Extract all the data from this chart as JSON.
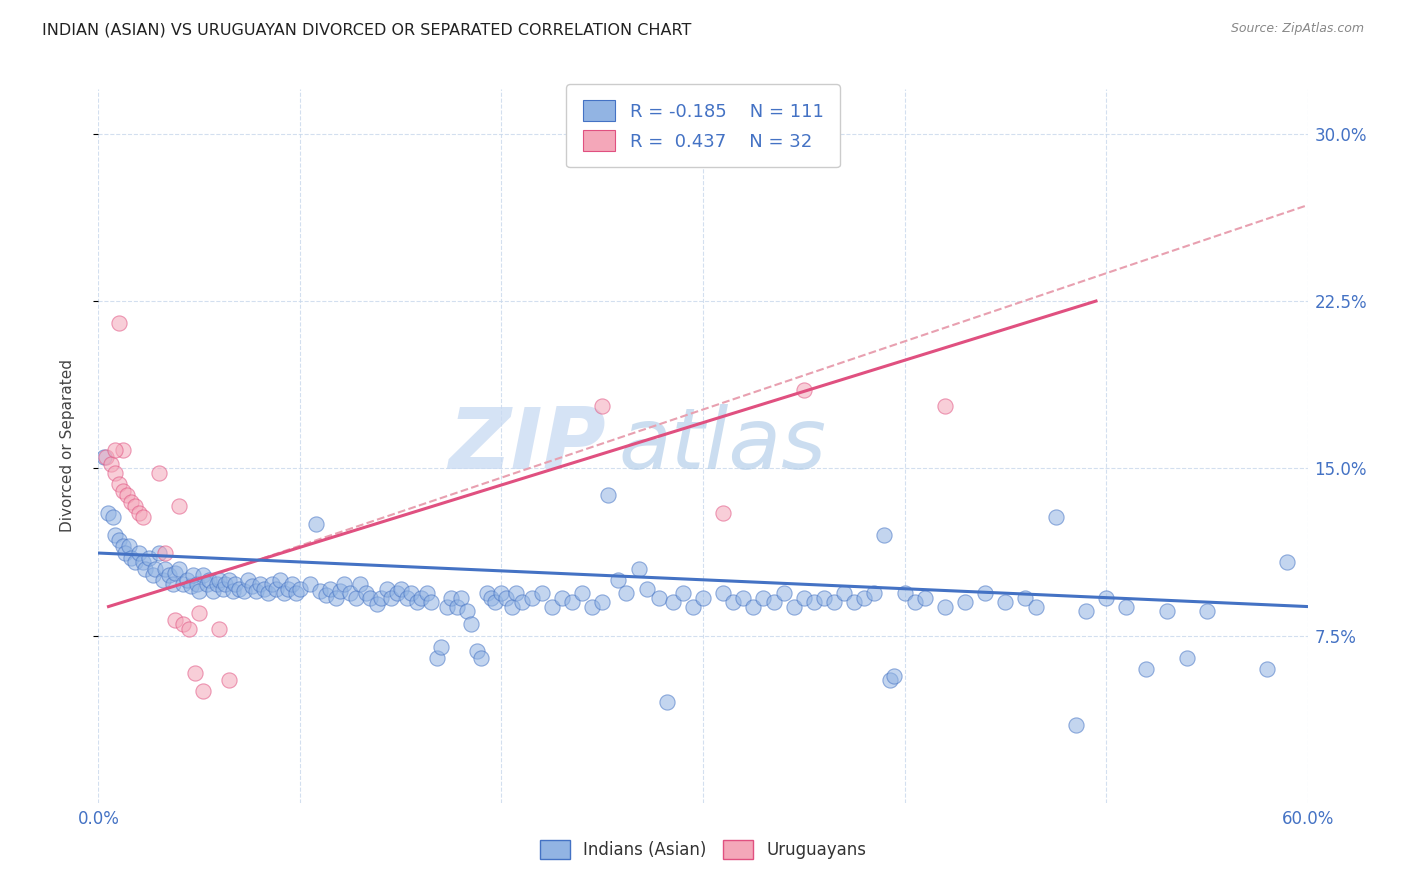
{
  "title": "INDIAN (ASIAN) VS URUGUAYAN DIVORCED OR SEPARATED CORRELATION CHART",
  "source": "Source: ZipAtlas.com",
  "ylabel": "Divorced or Separated",
  "legend_labels": [
    "Indians (Asian)",
    "Uruguayans"
  ],
  "legend_r_n": [
    {
      "r": "-0.185",
      "n": "111"
    },
    {
      "r": "0.437",
      "n": "32"
    }
  ],
  "xlim": [
    0.0,
    0.6
  ],
  "ylim": [
    0.0,
    0.32
  ],
  "xticks": [
    0.0,
    0.1,
    0.2,
    0.3,
    0.4,
    0.5,
    0.6
  ],
  "yticks": [
    0.075,
    0.15,
    0.225,
    0.3
  ],
  "ytick_labels": [
    "7.5%",
    "15.0%",
    "22.5%",
    "30.0%"
  ],
  "color_blue": "#92b4e3",
  "color_pink": "#f4a7b9",
  "line_blue": "#4472c4",
  "line_pink": "#e05080",
  "watermark_zip": "ZIP",
  "watermark_atlas": "atlas",
  "blue_scatter": [
    [
      0.003,
      0.155
    ],
    [
      0.005,
      0.13
    ],
    [
      0.007,
      0.128
    ],
    [
      0.008,
      0.12
    ],
    [
      0.01,
      0.118
    ],
    [
      0.012,
      0.115
    ],
    [
      0.013,
      0.112
    ],
    [
      0.015,
      0.115
    ],
    [
      0.016,
      0.11
    ],
    [
      0.018,
      0.108
    ],
    [
      0.02,
      0.112
    ],
    [
      0.022,
      0.108
    ],
    [
      0.023,
      0.105
    ],
    [
      0.025,
      0.11
    ],
    [
      0.027,
      0.102
    ],
    [
      0.028,
      0.105
    ],
    [
      0.03,
      0.112
    ],
    [
      0.032,
      0.1
    ],
    [
      0.033,
      0.105
    ],
    [
      0.035,
      0.102
    ],
    [
      0.037,
      0.098
    ],
    [
      0.038,
      0.103
    ],
    [
      0.04,
      0.105
    ],
    [
      0.042,
      0.098
    ],
    [
      0.044,
      0.1
    ],
    [
      0.046,
      0.097
    ],
    [
      0.047,
      0.102
    ],
    [
      0.049,
      0.098
    ],
    [
      0.05,
      0.095
    ],
    [
      0.052,
      0.102
    ],
    [
      0.054,
      0.098
    ],
    [
      0.055,
      0.1
    ],
    [
      0.057,
      0.095
    ],
    [
      0.059,
      0.098
    ],
    [
      0.06,
      0.1
    ],
    [
      0.062,
      0.096
    ],
    [
      0.063,
      0.098
    ],
    [
      0.065,
      0.1
    ],
    [
      0.067,
      0.095
    ],
    [
      0.068,
      0.098
    ],
    [
      0.07,
      0.096
    ],
    [
      0.072,
      0.095
    ],
    [
      0.074,
      0.1
    ],
    [
      0.076,
      0.097
    ],
    [
      0.078,
      0.095
    ],
    [
      0.08,
      0.098
    ],
    [
      0.082,
      0.096
    ],
    [
      0.084,
      0.094
    ],
    [
      0.086,
      0.098
    ],
    [
      0.088,
      0.096
    ],
    [
      0.09,
      0.1
    ],
    [
      0.092,
      0.094
    ],
    [
      0.094,
      0.096
    ],
    [
      0.096,
      0.098
    ],
    [
      0.098,
      0.094
    ],
    [
      0.1,
      0.096
    ],
    [
      0.105,
      0.098
    ],
    [
      0.108,
      0.125
    ],
    [
      0.11,
      0.095
    ],
    [
      0.113,
      0.093
    ],
    [
      0.115,
      0.096
    ],
    [
      0.118,
      0.092
    ],
    [
      0.12,
      0.095
    ],
    [
      0.122,
      0.098
    ],
    [
      0.125,
      0.094
    ],
    [
      0.128,
      0.092
    ],
    [
      0.13,
      0.098
    ],
    [
      0.133,
      0.094
    ],
    [
      0.135,
      0.092
    ],
    [
      0.138,
      0.089
    ],
    [
      0.14,
      0.092
    ],
    [
      0.143,
      0.096
    ],
    [
      0.145,
      0.092
    ],
    [
      0.148,
      0.094
    ],
    [
      0.15,
      0.096
    ],
    [
      0.153,
      0.092
    ],
    [
      0.155,
      0.094
    ],
    [
      0.158,
      0.09
    ],
    [
      0.16,
      0.092
    ],
    [
      0.163,
      0.094
    ],
    [
      0.165,
      0.09
    ],
    [
      0.168,
      0.065
    ],
    [
      0.17,
      0.07
    ],
    [
      0.173,
      0.088
    ],
    [
      0.175,
      0.092
    ],
    [
      0.178,
      0.088
    ],
    [
      0.18,
      0.092
    ],
    [
      0.183,
      0.086
    ],
    [
      0.185,
      0.08
    ],
    [
      0.188,
      0.068
    ],
    [
      0.19,
      0.065
    ],
    [
      0.193,
      0.094
    ],
    [
      0.195,
      0.092
    ],
    [
      0.197,
      0.09
    ],
    [
      0.2,
      0.094
    ],
    [
      0.202,
      0.092
    ],
    [
      0.205,
      0.088
    ],
    [
      0.207,
      0.094
    ],
    [
      0.21,
      0.09
    ],
    [
      0.215,
      0.092
    ],
    [
      0.22,
      0.094
    ],
    [
      0.225,
      0.088
    ],
    [
      0.23,
      0.092
    ],
    [
      0.235,
      0.09
    ],
    [
      0.24,
      0.094
    ],
    [
      0.245,
      0.088
    ],
    [
      0.25,
      0.09
    ],
    [
      0.253,
      0.138
    ],
    [
      0.258,
      0.1
    ],
    [
      0.262,
      0.094
    ],
    [
      0.268,
      0.105
    ],
    [
      0.272,
      0.096
    ],
    [
      0.278,
      0.092
    ],
    [
      0.282,
      0.045
    ],
    [
      0.285,
      0.09
    ],
    [
      0.29,
      0.094
    ],
    [
      0.295,
      0.088
    ],
    [
      0.3,
      0.092
    ],
    [
      0.31,
      0.094
    ],
    [
      0.315,
      0.09
    ],
    [
      0.32,
      0.092
    ],
    [
      0.325,
      0.088
    ],
    [
      0.33,
      0.092
    ],
    [
      0.335,
      0.09
    ],
    [
      0.34,
      0.094
    ],
    [
      0.345,
      0.088
    ],
    [
      0.35,
      0.092
    ],
    [
      0.355,
      0.09
    ],
    [
      0.36,
      0.092
    ],
    [
      0.365,
      0.09
    ],
    [
      0.37,
      0.094
    ],
    [
      0.375,
      0.09
    ],
    [
      0.38,
      0.092
    ],
    [
      0.385,
      0.094
    ],
    [
      0.39,
      0.12
    ],
    [
      0.393,
      0.055
    ],
    [
      0.395,
      0.057
    ],
    [
      0.4,
      0.094
    ],
    [
      0.405,
      0.09
    ],
    [
      0.41,
      0.092
    ],
    [
      0.42,
      0.088
    ],
    [
      0.43,
      0.09
    ],
    [
      0.44,
      0.094
    ],
    [
      0.45,
      0.09
    ],
    [
      0.46,
      0.092
    ],
    [
      0.465,
      0.088
    ],
    [
      0.475,
      0.128
    ],
    [
      0.485,
      0.035
    ],
    [
      0.49,
      0.086
    ],
    [
      0.5,
      0.092
    ],
    [
      0.51,
      0.088
    ],
    [
      0.52,
      0.06
    ],
    [
      0.53,
      0.086
    ],
    [
      0.54,
      0.065
    ],
    [
      0.55,
      0.086
    ],
    [
      0.58,
      0.06
    ],
    [
      0.59,
      0.108
    ]
  ],
  "pink_scatter": [
    [
      0.004,
      0.155
    ],
    [
      0.006,
      0.152
    ],
    [
      0.008,
      0.148
    ],
    [
      0.01,
      0.143
    ],
    [
      0.012,
      0.14
    ],
    [
      0.014,
      0.138
    ],
    [
      0.016,
      0.135
    ],
    [
      0.018,
      0.133
    ],
    [
      0.02,
      0.13
    ],
    [
      0.022,
      0.128
    ],
    [
      0.01,
      0.215
    ],
    [
      0.03,
      0.148
    ],
    [
      0.033,
      0.112
    ],
    [
      0.038,
      0.082
    ],
    [
      0.04,
      0.133
    ],
    [
      0.042,
      0.08
    ],
    [
      0.045,
      0.078
    ],
    [
      0.048,
      0.058
    ],
    [
      0.05,
      0.085
    ],
    [
      0.052,
      0.05
    ],
    [
      0.06,
      0.078
    ],
    [
      0.065,
      0.055
    ],
    [
      0.012,
      0.158
    ],
    [
      0.008,
      0.158
    ],
    [
      0.25,
      0.178
    ],
    [
      0.35,
      0.185
    ],
    [
      0.42,
      0.178
    ],
    [
      0.31,
      0.13
    ]
  ],
  "blue_line_x": [
    0.0,
    0.6
  ],
  "blue_line_y": [
    0.112,
    0.088
  ],
  "pink_line_x": [
    0.005,
    0.495
  ],
  "pink_line_y": [
    0.088,
    0.225
  ],
  "dashed_line_x": [
    0.05,
    0.6
  ],
  "dashed_line_y": [
    0.1,
    0.268
  ],
  "dashed_color": "#e8a0b0"
}
